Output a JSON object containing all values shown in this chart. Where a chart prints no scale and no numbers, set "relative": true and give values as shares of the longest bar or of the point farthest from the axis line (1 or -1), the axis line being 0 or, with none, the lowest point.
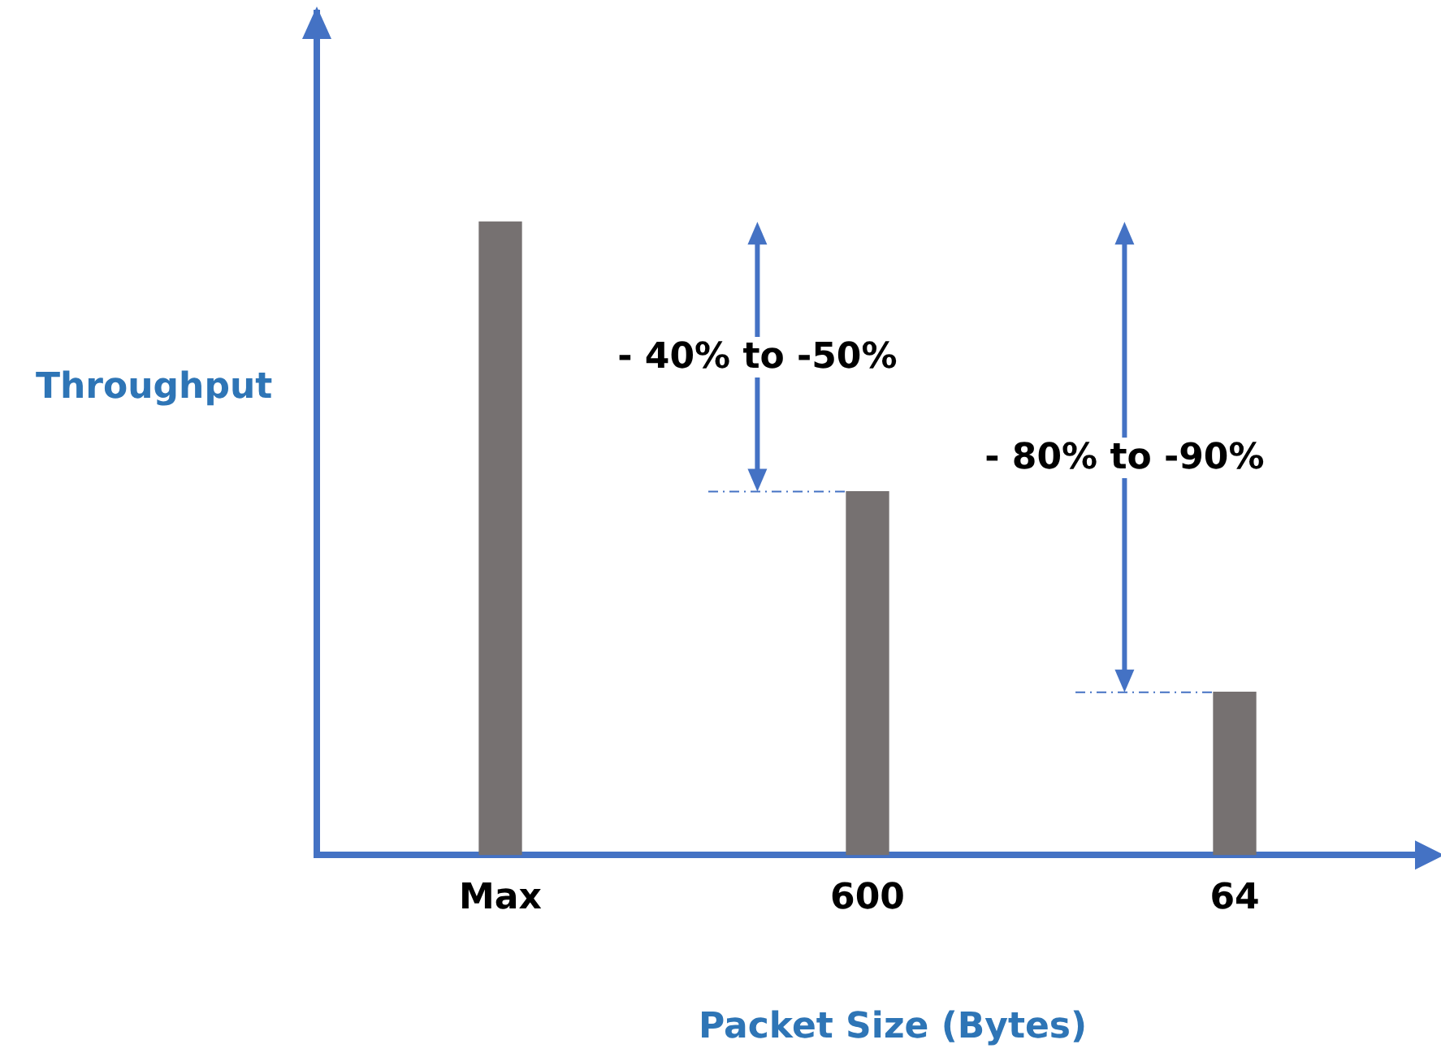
{
  "chart_data": {
    "type": "bar",
    "relative": true,
    "xlabel": "Packet Size (Bytes)",
    "ylabel": "Throughput",
    "categories": [
      "Max",
      "600",
      "64"
    ],
    "values": [
      1,
      0.574,
      0.257
    ],
    "color": "#767171",
    "annotations": [
      "- 40% to -50%",
      "- 80% to -90%"
    ],
    "grid": false,
    "legend": false
  }
}
